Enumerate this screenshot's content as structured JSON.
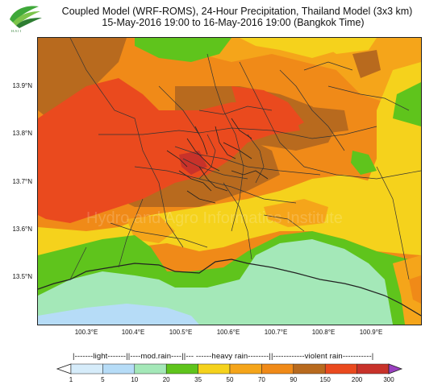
{
  "header": {
    "title_line1": "Coupled Model (WRF-ROMS), 24-Hour Precipitation, Thailand Model (3x3 km)",
    "title_line2": "15-May-2016 19:00 to 16-May-2016 19:00 (Bangkok Time)"
  },
  "map": {
    "y_ticks": [
      "13.9°N",
      "13.8°N",
      "13.7°N",
      "13.6°N",
      "13.5°N"
    ],
    "x_ticks": [
      "100.3°E",
      "100.4°E",
      "100.5°E",
      "100.6°E",
      "100.7°E",
      "100.8°E",
      "100.9°E"
    ],
    "watermark": "Hydro and Agro Informatics Institute"
  },
  "legend": {
    "categories_text": "|-------light-------||----mod.rain----||--- ------heavy rain--------||------------violent rain-----------|",
    "values": [
      "1",
      "5",
      "10",
      "20",
      "35",
      "50",
      "70",
      "90",
      "150",
      "200",
      "300"
    ],
    "colors": [
      "#d6ecfa",
      "#b6dcf7",
      "#a4e8b8",
      "#5fc41c",
      "#f5d21c",
      "#f5a51a",
      "#f08a18",
      "#b86a1e",
      "#ea4a1e",
      "#c8322a",
      "#8a2020"
    ],
    "over_color": "#9a40c0",
    "under_color": "#ffffff"
  }
}
